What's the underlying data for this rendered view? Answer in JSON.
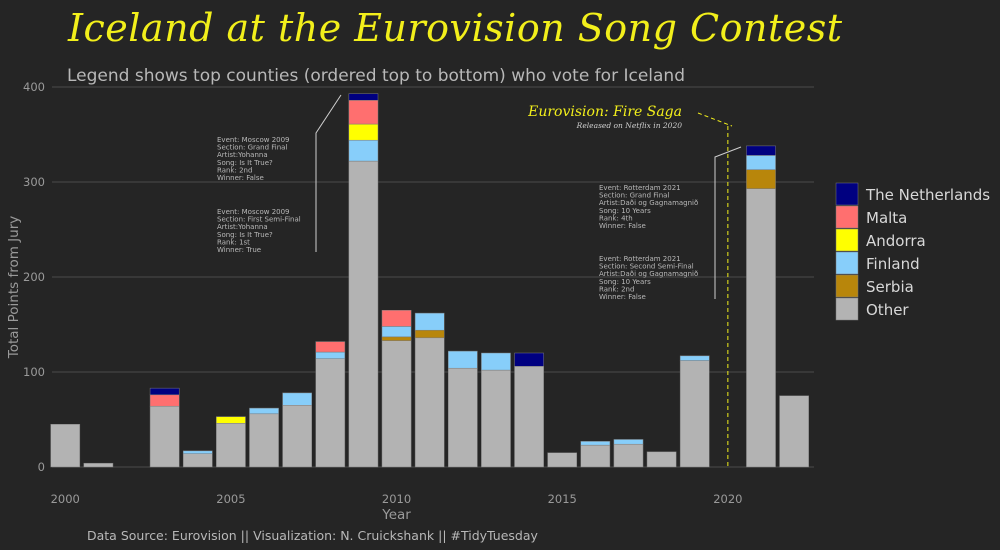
{
  "title": "Iceland at the Eurovision Song Contest",
  "subtitle": "Legend shows top counties (ordered top to bottom) who vote for Iceland",
  "caption": "Data Source: Eurovision || Visualization: N. Cruickshank || #TidyTuesday",
  "colors": {
    "background": "#252525",
    "grid": "#4a4a4a",
    "The Netherlands": "#000080",
    "Malta": "#ff6f6f",
    "Andorra": "#ffff00",
    "Finland": "#87cefa",
    "Serbia": "#b8860b",
    "Other": "#b3b3b3",
    "highlight": "#f2ef1b"
  },
  "chart_data": {
    "type": "bar",
    "stacked": true,
    "xlabel": "Year",
    "ylabel": "Total Points from Jury",
    "xlim": [
      1999.6,
      2022.6
    ],
    "ylim": [
      0,
      400
    ],
    "x_ticks": [
      2000,
      2005,
      2010,
      2015,
      2020
    ],
    "y_ticks": [
      0,
      100,
      200,
      300,
      400
    ],
    "grid": true,
    "legend_position": "right",
    "legend": [
      "The Netherlands",
      "Malta",
      "Andorra",
      "Finland",
      "Serbia",
      "Other"
    ],
    "stack_order": [
      "Other",
      "Serbia",
      "Finland",
      "Andorra",
      "Malta",
      "The Netherlands"
    ],
    "years": [
      2000,
      2001,
      2003,
      2004,
      2005,
      2006,
      2007,
      2008,
      2009,
      2010,
      2011,
      2012,
      2013,
      2014,
      2015,
      2016,
      2017,
      2018,
      2019,
      2021,
      2022
    ],
    "series": [
      {
        "name": "Other",
        "values": [
          45,
          4,
          64,
          14,
          46,
          56,
          65,
          114,
          322,
          133,
          136,
          104,
          102,
          106,
          15,
          23,
          24,
          16,
          112,
          293,
          75
        ]
      },
      {
        "name": "Serbia",
        "values": [
          0,
          0,
          0,
          0,
          0,
          0,
          0,
          0,
          0,
          4,
          8,
          0,
          0,
          0,
          0,
          0,
          0,
          0,
          0,
          20,
          0
        ]
      },
      {
        "name": "Finland",
        "values": [
          0,
          0,
          0,
          3,
          0,
          6,
          13,
          7,
          22,
          11,
          18,
          18,
          18,
          0,
          0,
          4,
          5,
          0,
          5,
          15,
          0
        ]
      },
      {
        "name": "Andorra",
        "values": [
          0,
          0,
          0,
          0,
          7,
          0,
          0,
          0,
          17,
          0,
          0,
          0,
          0,
          0,
          0,
          0,
          0,
          0,
          0,
          0,
          0
        ]
      },
      {
        "name": "Malta",
        "values": [
          0,
          0,
          12,
          0,
          0,
          0,
          0,
          11,
          25,
          17,
          0,
          0,
          0,
          0,
          0,
          0,
          0,
          0,
          0,
          0,
          0
        ]
      },
      {
        "name": "The Netherlands",
        "values": [
          0,
          0,
          7,
          0,
          0,
          0,
          0,
          0,
          7,
          0,
          0,
          0,
          0,
          14,
          0,
          0,
          0,
          0,
          0,
          10,
          0
        ]
      }
    ],
    "annotations": [
      {
        "lines": [
          "Event: Moscow 2009",
          "Section: Grand Final",
          "Artist:Yohanna",
          "Song: Is It True?",
          "Rank: 2nd",
          "Winner: False"
        ]
      },
      {
        "lines": [
          "Event: Moscow 2009",
          "Section: First Semi-Final",
          "Artist:Yohanna",
          "Song: Is It True?",
          "Rank: 1st",
          "Winner: True"
        ]
      },
      {
        "lines": [
          "Event: Rotterdam 2021",
          "Section: Grand Final",
          "Artist:Daði og Gagnamagnið",
          "Song: 10 Years",
          "Rank: 4th",
          "Winner: False"
        ]
      },
      {
        "lines": [
          "Event: Rotterdam 2021",
          "Section: Second Semi-Final",
          "Artist:Daði og Gagnamagnið",
          "Song: 10 Years",
          "Rank: 2nd",
          "Winner: False"
        ]
      }
    ],
    "reference_line": {
      "x": 2020,
      "title": "Eurovision: Fire Saga",
      "subtitle": "Released on Netflix in 2020"
    }
  }
}
